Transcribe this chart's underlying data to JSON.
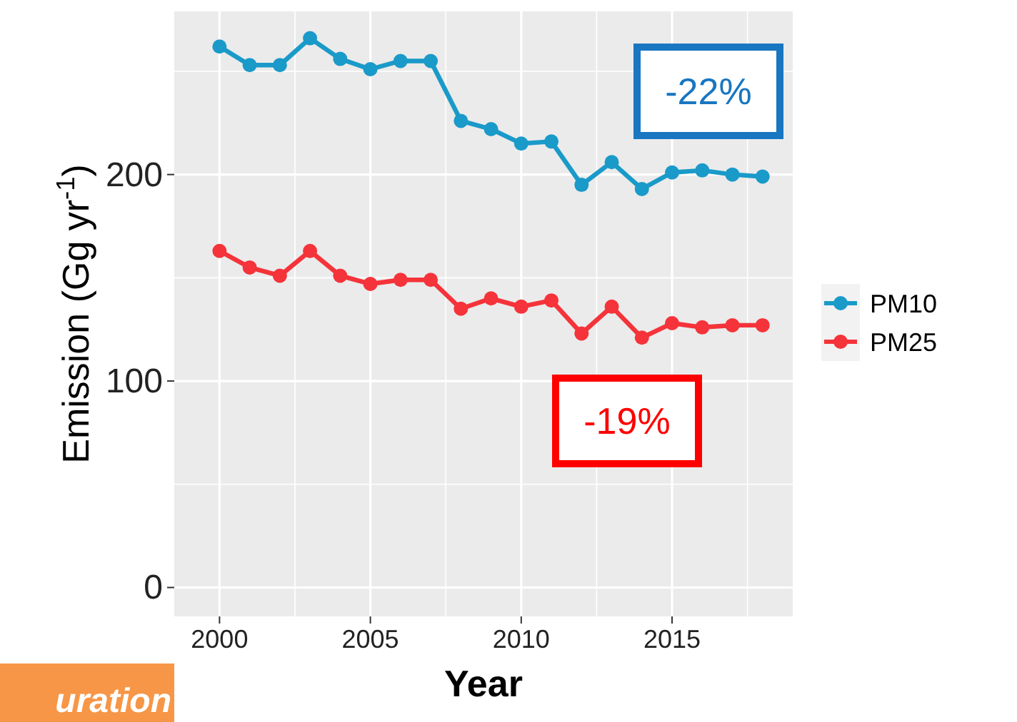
{
  "chart_data": {
    "type": "line",
    "xlabel": "Year",
    "ylabel": "Emission (Gg yr$^{-1}$)",
    "x": [
      2000,
      2001,
      2002,
      2003,
      2004,
      2005,
      2006,
      2007,
      2008,
      2009,
      2010,
      2011,
      2012,
      2013,
      2014,
      2015,
      2016,
      2017,
      2018
    ],
    "series": [
      {
        "name": "PM10",
        "color": "#1a9ac9",
        "values": [
          262,
          253,
          253,
          266,
          256,
          251,
          255,
          255,
          226,
          222,
          215,
          216,
          195,
          206,
          193,
          201,
          202,
          200,
          199
        ]
      },
      {
        "name": "PM25",
        "color": "#f5333a",
        "values": [
          163,
          155,
          151,
          163,
          151,
          147,
          149,
          149,
          135,
          140,
          136,
          139,
          123,
          136,
          121,
          128,
          126,
          127,
          127
        ]
      }
    ],
    "xlim": [
      1998.5,
      2019
    ],
    "xticks": [
      2000,
      2005,
      2010,
      2015
    ],
    "ylim": [
      -14,
      279
    ],
    "yticks": [
      0,
      100,
      200
    ],
    "grid": true,
    "legend": "right",
    "marker": "circle",
    "line_style": "solid",
    "annotations": [
      "-22%",
      "-19%",
      "uration"
    ]
  }
}
